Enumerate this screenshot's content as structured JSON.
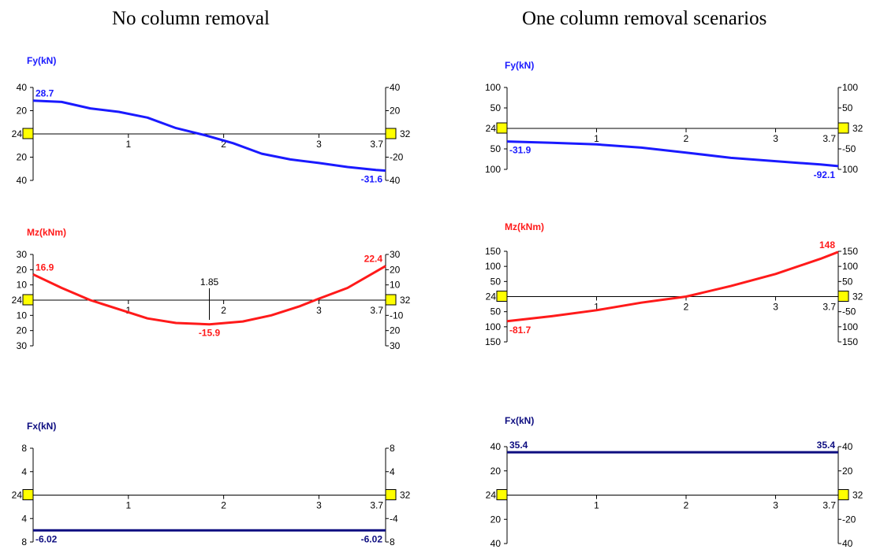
{
  "headings": {
    "left": "No column removal",
    "right": "One column removal scenarios"
  },
  "chart_data": [
    {
      "id": "fy-no-removal",
      "type": "line",
      "column": "left",
      "title": "Fy(kN)",
      "color": "#1a1aff",
      "xlim": [
        0,
        3.7
      ],
      "x_ticks": [
        "1",
        "2",
        "3",
        "3.7"
      ],
      "ylim": [
        -40,
        40
      ],
      "left_ticks": [
        {
          "v": 40,
          "t": "40"
        },
        {
          "v": 20,
          "t": "20"
        },
        {
          "v": 0,
          "t": "24"
        },
        {
          "v": -20,
          "t": "20"
        },
        {
          "v": -40,
          "t": "40"
        }
      ],
      "right_ticks": [
        {
          "v": 40,
          "t": "40"
        },
        {
          "v": 20,
          "t": "20"
        },
        {
          "v": 0,
          "t": "32"
        },
        {
          "v": -20,
          "t": "-20"
        },
        {
          "v": -40,
          "t": "40"
        }
      ],
      "x": [
        0,
        0.3,
        0.6,
        0.9,
        1.2,
        1.5,
        1.8,
        2.1,
        2.4,
        2.7,
        3.0,
        3.3,
        3.6,
        3.7
      ],
      "y": [
        28.7,
        27.5,
        22,
        19,
        14,
        5,
        -1,
        -8,
        -17,
        -22,
        -25,
        -28.5,
        -31,
        -31.6
      ],
      "labels": [
        {
          "x": 0,
          "y": 28.7,
          "text": "28.7"
        },
        {
          "x": 3.7,
          "y": -31.6,
          "text": "-31.6"
        }
      ]
    },
    {
      "id": "mz-no-removal",
      "type": "line",
      "column": "left",
      "title": "Mz(kNm)",
      "color": "#ff1a1a",
      "xlim": [
        0,
        3.7
      ],
      "x_ticks": [
        "1",
        "2",
        "3",
        "3.7"
      ],
      "ylim": [
        -30,
        30
      ],
      "left_ticks": [
        {
          "v": 30,
          "t": "30"
        },
        {
          "v": 20,
          "t": "20"
        },
        {
          "v": 10,
          "t": "10"
        },
        {
          "v": 0,
          "t": "24"
        },
        {
          "v": -10,
          "t": "10"
        },
        {
          "v": -20,
          "t": "20"
        },
        {
          "v": -30,
          "t": "30"
        }
      ],
      "right_ticks": [
        {
          "v": 30,
          "t": "30"
        },
        {
          "v": 20,
          "t": "20"
        },
        {
          "v": 10,
          "t": "10"
        },
        {
          "v": 0,
          "t": "32"
        },
        {
          "v": -10,
          "t": "-10"
        },
        {
          "v": -20,
          "t": "20"
        },
        {
          "v": -30,
          "t": "30"
        }
      ],
      "marker": {
        "x": 1.85,
        "text": "1.85"
      },
      "x": [
        0,
        0.3,
        0.6,
        0.9,
        1.2,
        1.5,
        1.85,
        2.2,
        2.5,
        2.8,
        3.0,
        3.3,
        3.7
      ],
      "y": [
        16.9,
        8,
        0,
        -6,
        -12,
        -15,
        -15.9,
        -14,
        -10,
        -4,
        1,
        8,
        22.4
      ],
      "labels": [
        {
          "x": 0,
          "y": 16.9,
          "text": "16.9"
        },
        {
          "x": 1.85,
          "y": -15.9,
          "text": "-15.9"
        },
        {
          "x": 3.7,
          "y": 22.4,
          "text": "22.4"
        }
      ]
    },
    {
      "id": "fx-no-removal",
      "type": "line",
      "column": "left",
      "title": "Fx(kN)",
      "color": "#0d0d80",
      "xlim": [
        0,
        3.7
      ],
      "x_ticks": [
        "1",
        "2",
        "3",
        "3.7"
      ],
      "ylim": [
        -8,
        8
      ],
      "left_ticks": [
        {
          "v": 8,
          "t": "8"
        },
        {
          "v": 4,
          "t": "4"
        },
        {
          "v": 0,
          "t": "24"
        },
        {
          "v": -4,
          "t": "4"
        },
        {
          "v": -8,
          "t": "8"
        }
      ],
      "right_ticks": [
        {
          "v": 8,
          "t": "8"
        },
        {
          "v": 4,
          "t": "4"
        },
        {
          "v": 0,
          "t": "32"
        },
        {
          "v": -4,
          "t": "-4"
        },
        {
          "v": -8,
          "t": "8"
        }
      ],
      "x": [
        0,
        3.7
      ],
      "y": [
        -6.02,
        -6.02
      ],
      "labels": [
        {
          "x": 0,
          "y": -6.02,
          "text": "-6.02"
        },
        {
          "x": 3.7,
          "y": -6.02,
          "text": "-6.02"
        }
      ]
    },
    {
      "id": "fy-one-removal",
      "type": "line",
      "column": "right",
      "title": "Fy(kN)",
      "color": "#1a1aff",
      "xlim": [
        0,
        3.7
      ],
      "x_ticks": [
        "1",
        "2",
        "3",
        "3.7"
      ],
      "ylim": [
        -100,
        100
      ],
      "left_ticks": [
        {
          "v": 100,
          "t": "100"
        },
        {
          "v": 50,
          "t": "50"
        },
        {
          "v": 0,
          "t": "24"
        },
        {
          "v": -50,
          "t": "50"
        },
        {
          "v": -100,
          "t": "100"
        }
      ],
      "right_ticks": [
        {
          "v": 100,
          "t": "100"
        },
        {
          "v": 50,
          "t": "50"
        },
        {
          "v": 0,
          "t": "32"
        },
        {
          "v": -50,
          "t": "-50"
        },
        {
          "v": -100,
          "t": "100"
        }
      ],
      "x": [
        0,
        0.5,
        1.0,
        1.5,
        2.0,
        2.5,
        3.0,
        3.5,
        3.7
      ],
      "y": [
        -31.9,
        -35,
        -39,
        -47,
        -59,
        -72,
        -80,
        -88,
        -92.1
      ],
      "labels": [
        {
          "x": 0,
          "y": -31.9,
          "text": "-31.9"
        },
        {
          "x": 3.7,
          "y": -92.1,
          "text": "-92.1"
        }
      ]
    },
    {
      "id": "mz-one-removal",
      "type": "line",
      "column": "right",
      "title": "Mz(kNm)",
      "color": "#ff1a1a",
      "xlim": [
        0,
        3.7
      ],
      "x_ticks": [
        "1",
        "2",
        "3",
        "3.7"
      ],
      "ylim": [
        -150,
        150
      ],
      "left_ticks": [
        {
          "v": 150,
          "t": "150"
        },
        {
          "v": 100,
          "t": "100"
        },
        {
          "v": 50,
          "t": "50"
        },
        {
          "v": 0,
          "t": "24"
        },
        {
          "v": -50,
          "t": "50"
        },
        {
          "v": -100,
          "t": "100"
        },
        {
          "v": -150,
          "t": "150"
        }
      ],
      "right_ticks": [
        {
          "v": 150,
          "t": "150"
        },
        {
          "v": 100,
          "t": "100"
        },
        {
          "v": 50,
          "t": "50"
        },
        {
          "v": 0,
          "t": "32"
        },
        {
          "v": -50,
          "t": "-50"
        },
        {
          "v": -100,
          "t": "100"
        },
        {
          "v": -150,
          "t": "150"
        }
      ],
      "x": [
        0,
        0.5,
        1.0,
        1.5,
        2.0,
        2.5,
        3.0,
        3.5,
        3.7
      ],
      "y": [
        -81.7,
        -65,
        -45,
        -20,
        0,
        35,
        75,
        125,
        148
      ],
      "labels": [
        {
          "x": 0,
          "y": -81.7,
          "text": "-81.7"
        },
        {
          "x": 3.7,
          "y": 148,
          "text": "148"
        }
      ]
    },
    {
      "id": "fx-one-removal",
      "type": "line",
      "column": "right",
      "title": "Fx(kN)",
      "color": "#0d0d80",
      "xlim": [
        0,
        3.7
      ],
      "x_ticks": [
        "1",
        "2",
        "3",
        "3.7"
      ],
      "ylim": [
        -40,
        40
      ],
      "left_ticks": [
        {
          "v": 40,
          "t": "40"
        },
        {
          "v": 20,
          "t": "20"
        },
        {
          "v": 0,
          "t": "24"
        },
        {
          "v": -20,
          "t": "20"
        },
        {
          "v": -40,
          "t": "40"
        }
      ],
      "right_ticks": [
        {
          "v": 40,
          "t": "40"
        },
        {
          "v": 20,
          "t": "20"
        },
        {
          "v": 0,
          "t": "32"
        },
        {
          "v": -20,
          "t": "-20"
        },
        {
          "v": -40,
          "t": "40"
        }
      ],
      "x": [
        0,
        3.7
      ],
      "y": [
        35.4,
        35.4
      ],
      "labels": [
        {
          "x": 0,
          "y": 35.4,
          "text": "35.4"
        },
        {
          "x": 3.7,
          "y": 35.4,
          "text": "35.4"
        }
      ]
    }
  ]
}
